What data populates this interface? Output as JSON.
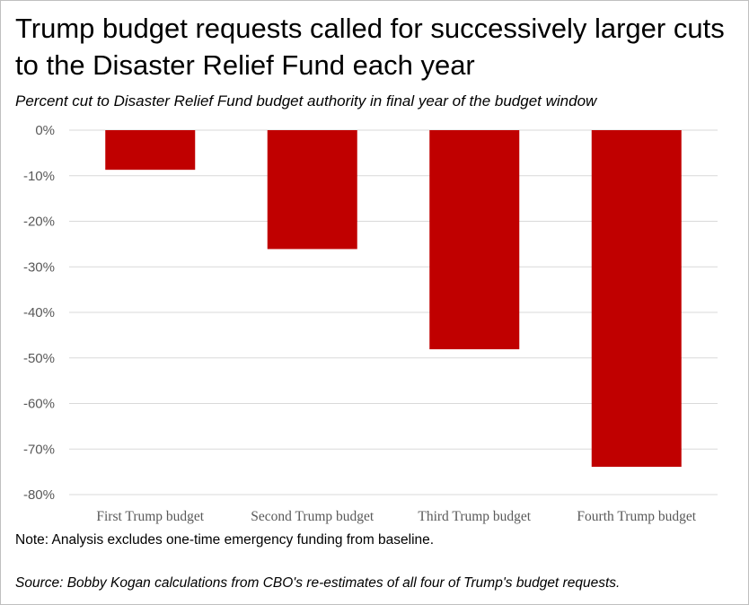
{
  "chart_data": {
    "type": "bar",
    "title": "Trump budget requests called for successively larger cuts to the Disaster Relief Fund each year",
    "subtitle": "Percent cut to Disaster Relief Fund budget authority in final year of the budget window",
    "categories": [
      "First Trump budget",
      "Second Trump budget",
      "Third Trump budget",
      "Fourth Trump budget"
    ],
    "values": [
      -8.7,
      -26.1,
      -48.1,
      -73.9
    ],
    "xlabel": "",
    "ylabel": "",
    "ylim": [
      -80,
      0
    ],
    "yticks": [
      0,
      -10,
      -20,
      -30,
      -40,
      -50,
      -60,
      -70,
      -80
    ],
    "ytick_labels": [
      "0%",
      "-10%",
      "-20%",
      "-30%",
      "-40%",
      "-50%",
      "-60%",
      "-70%",
      "-80%"
    ],
    "grid": true,
    "bar_color": "#c00000",
    "note": "Note: Analysis excludes one-time emergency funding from baseline.",
    "source": "Source: Bobby Kogan calculations from CBO's re-estimates of all four of Trump's budget requests."
  },
  "colors": {
    "bar": "#c00000",
    "gridline": "#d9d9d9",
    "axis_text": "#595959",
    "border": "#bfbfbf"
  }
}
